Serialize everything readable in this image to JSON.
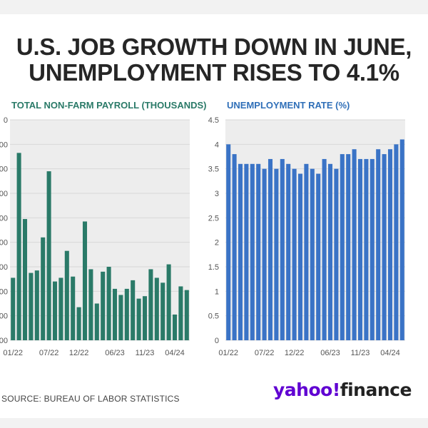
{
  "title_line1": "U.S. JOB GROWTH DOWN IN JUNE,",
  "title_line2": "UNEMPLOYMENT RISES TO 4.1%",
  "source": "SOURCE: BUREAU OF LABOR STATISTICS",
  "logo": {
    "part1": "yahoo",
    "mark": "!",
    "part2": "finance"
  },
  "colors": {
    "payroll": "#2a7a68",
    "unemployment": "#3a73c6",
    "panel_bg": "#ededed"
  },
  "chart_data": [
    {
      "type": "bar",
      "title": "TOTAL NON-FARM PAYROLL (THOUSANDS)",
      "visible_y_tick_labels": [
        "00",
        "00",
        "00",
        "00",
        "00",
        "00",
        "00",
        "00",
        "00",
        "0"
      ],
      "ylim": [
        0,
        900
      ],
      "grid": true,
      "x_tick_labels": [
        {
          "label": "01/22",
          "index": 0
        },
        {
          "label": "07/22",
          "index": 6
        },
        {
          "label": "12/22",
          "index": 11
        },
        {
          "label": "06/23",
          "index": 17
        },
        {
          "label": "11/23",
          "index": 22
        },
        {
          "label": "04/24",
          "index": 27
        }
      ],
      "values": [
        255,
        765,
        495,
        275,
        285,
        420,
        690,
        240,
        255,
        365,
        260,
        135,
        485,
        290,
        150,
        280,
        300,
        210,
        185,
        210,
        245,
        170,
        180,
        290,
        255,
        235,
        310,
        105,
        220,
        205
      ]
    },
    {
      "type": "bar",
      "title": "UNEMPLOYMENT RATE (%)",
      "y_ticks": [
        "0",
        "0.5",
        "1",
        "1.5",
        "2",
        "2.5",
        "3",
        "3.5",
        "4",
        "4.5"
      ],
      "ylim": [
        0,
        4.5
      ],
      "grid": true,
      "x_tick_labels": [
        {
          "label": "01/22",
          "index": 0
        },
        {
          "label": "07/22",
          "index": 6
        },
        {
          "label": "12/22",
          "index": 11
        },
        {
          "label": "06/23",
          "index": 17
        },
        {
          "label": "11/23",
          "index": 22
        },
        {
          "label": "04/24",
          "index": 27
        }
      ],
      "values": [
        4.0,
        3.8,
        3.6,
        3.6,
        3.6,
        3.6,
        3.5,
        3.7,
        3.5,
        3.7,
        3.6,
        3.5,
        3.4,
        3.6,
        3.5,
        3.4,
        3.7,
        3.6,
        3.5,
        3.8,
        3.8,
        3.9,
        3.7,
        3.7,
        3.7,
        3.9,
        3.8,
        3.9,
        4.0,
        4.1
      ]
    }
  ]
}
